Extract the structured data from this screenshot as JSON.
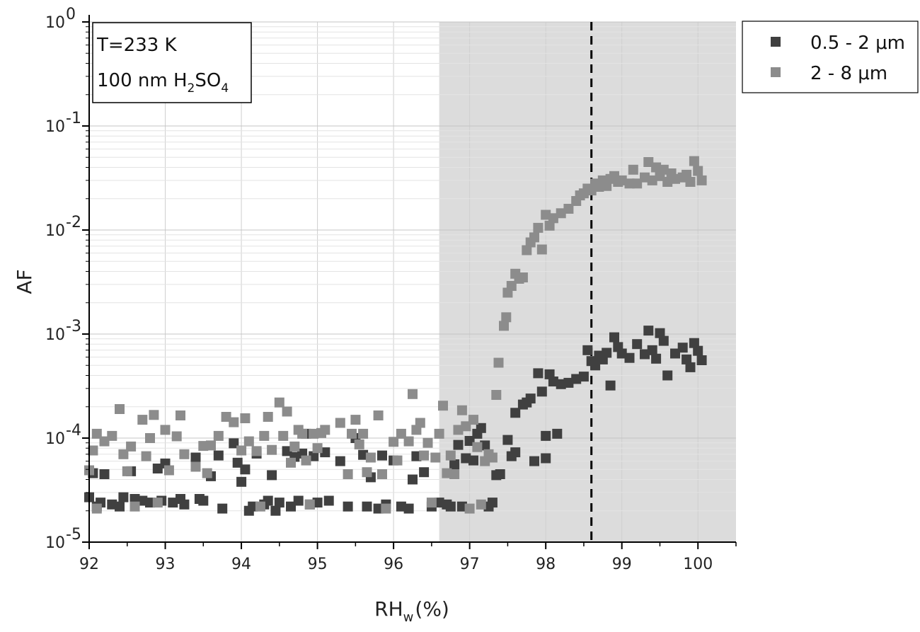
{
  "chart_data": {
    "type": "scatter",
    "xlabel": "RH",
    "xlabel_sub": "w",
    "xlabel_unit": "(%)",
    "ylabel": "AF",
    "xlim": [
      92,
      100.5
    ],
    "ylim": [
      1e-05,
      1
    ],
    "yscale": "log",
    "grid": true,
    "x_ticks": [
      {
        "value": 92,
        "label": "92"
      },
      {
        "value": 93,
        "label": "93"
      },
      {
        "value": 94,
        "label": "94"
      },
      {
        "value": 95,
        "label": "95"
      },
      {
        "value": 96,
        "label": "96"
      },
      {
        "value": 97,
        "label": "97"
      },
      {
        "value": 98,
        "label": "98"
      },
      {
        "value": 99,
        "label": "99"
      },
      {
        "value": 100,
        "label": "100"
      }
    ],
    "y_ticks": [
      {
        "value": 1e-05,
        "base": "10",
        "exp": "-5"
      },
      {
        "value": 0.0001,
        "base": "10",
        "exp": "-4"
      },
      {
        "value": 0.001,
        "base": "10",
        "exp": "-3"
      },
      {
        "value": 0.01,
        "base": "10",
        "exp": "-2"
      },
      {
        "value": 0.1,
        "base": "10",
        "exp": "-1"
      },
      {
        "value": 1,
        "base": "10",
        "exp": "0"
      }
    ],
    "shaded_region": {
      "x_start": 96.6,
      "x_end": 100.5,
      "color": "#dcdcdc"
    },
    "vline": {
      "x": 98.6,
      "style": "dashed",
      "color": "#000000"
    },
    "annotation": {
      "line1": "T=233 K",
      "line2_prefix": "100 nm H",
      "line2_sub1": "2",
      "line2_mid": "SO",
      "line2_sub2": "4"
    },
    "legend_position": "top-right-outside",
    "series": [
      {
        "name": "0.5 - 2 μm",
        "color": "#404040",
        "points": [
          [
            92.0,
            2.7e-05
          ],
          [
            92.05,
            4.6e-05
          ],
          [
            92.1,
            2.2e-05
          ],
          [
            92.15,
            2.4e-05
          ],
          [
            92.2,
            4.5e-05
          ],
          [
            92.3,
            2.3e-05
          ],
          [
            92.4,
            2.2e-05
          ],
          [
            92.45,
            2.7e-05
          ],
          [
            92.55,
            4.8e-05
          ],
          [
            92.6,
            2.6e-05
          ],
          [
            92.7,
            2.5e-05
          ],
          [
            92.8,
            2.4e-05
          ],
          [
            92.9,
            5.1e-05
          ],
          [
            92.95,
            2.5e-05
          ],
          [
            93.0,
            5.7e-05
          ],
          [
            93.1,
            2.4e-05
          ],
          [
            93.2,
            2.6e-05
          ],
          [
            93.25,
            2.3e-05
          ],
          [
            93.4,
            6.5e-05
          ],
          [
            93.45,
            2.6e-05
          ],
          [
            93.5,
            2.5e-05
          ],
          [
            93.6,
            4.3e-05
          ],
          [
            93.7,
            6.8e-05
          ],
          [
            93.75,
            2.1e-05
          ],
          [
            93.9,
            8.9e-05
          ],
          [
            93.95,
            5.8e-05
          ],
          [
            94.0,
            3.8e-05
          ],
          [
            94.05,
            5e-05
          ],
          [
            94.1,
            2e-05
          ],
          [
            94.15,
            2.2e-05
          ],
          [
            94.2,
            7.1e-05
          ],
          [
            94.3,
            2.3e-05
          ],
          [
            94.35,
            2.5e-05
          ],
          [
            94.4,
            4.4e-05
          ],
          [
            94.45,
            2e-05
          ],
          [
            94.5,
            2.4e-05
          ],
          [
            94.6,
            7.5e-05
          ],
          [
            94.65,
            2.2e-05
          ],
          [
            94.7,
            6.6e-05
          ],
          [
            94.75,
            2.5e-05
          ],
          [
            94.8,
            7.1e-05
          ],
          [
            94.85,
            0.00011
          ],
          [
            94.9,
            2.3e-05
          ],
          [
            94.95,
            6.7e-05
          ],
          [
            95.0,
            2.4e-05
          ],
          [
            95.1,
            7.3e-05
          ],
          [
            95.15,
            2.5e-05
          ],
          [
            95.3,
            6e-05
          ],
          [
            95.4,
            2.2e-05
          ],
          [
            95.5,
            0.0001
          ],
          [
            95.6,
            6.9e-05
          ],
          [
            95.65,
            2.2e-05
          ],
          [
            95.7,
            4.2e-05
          ],
          [
            95.8,
            2.1e-05
          ],
          [
            95.85,
            6.8e-05
          ],
          [
            95.9,
            2.3e-05
          ],
          [
            96.0,
            6.1e-05
          ],
          [
            96.1,
            2.2e-05
          ],
          [
            96.2,
            2.1e-05
          ],
          [
            96.25,
            4e-05
          ],
          [
            96.3,
            6.7e-05
          ],
          [
            96.4,
            4.7e-05
          ],
          [
            96.5,
            2.2e-05
          ],
          [
            96.6,
            2.4e-05
          ],
          [
            96.7,
            2.3e-05
          ],
          [
            96.75,
            2.2e-05
          ],
          [
            96.8,
            5.6e-05
          ],
          [
            96.85,
            8.6e-05
          ],
          [
            96.9,
            2.2e-05
          ],
          [
            96.95,
            6.4e-05
          ],
          [
            97.0,
            9.4e-05
          ],
          [
            97.05,
            6.1e-05
          ],
          [
            97.1,
            0.00011
          ],
          [
            97.15,
            0.000125
          ],
          [
            97.2,
            8.5e-05
          ],
          [
            97.25,
            2.2e-05
          ],
          [
            97.3,
            2.4e-05
          ],
          [
            97.35,
            4.4e-05
          ],
          [
            97.4,
            4.5e-05
          ],
          [
            97.5,
            9.6e-05
          ],
          [
            97.55,
            6.7e-05
          ],
          [
            97.6,
            7.3e-05
          ],
          [
            97.6,
            0.000175
          ],
          [
            97.7,
            0.00021
          ],
          [
            97.75,
            0.00022
          ],
          [
            97.8,
            0.00024
          ],
          [
            97.85,
            6e-05
          ],
          [
            97.9,
            0.00042
          ],
          [
            97.95,
            0.00028
          ],
          [
            98.0,
            0.000105
          ],
          [
            98.0,
            6.4e-05
          ],
          [
            98.05,
            0.00041
          ],
          [
            98.1,
            0.00035
          ],
          [
            98.15,
            0.00011
          ],
          [
            98.2,
            0.00033
          ],
          [
            98.3,
            0.00034
          ],
          [
            98.4,
            0.00037
          ],
          [
            98.5,
            0.00039
          ],
          [
            98.55,
            0.0007
          ],
          [
            98.6,
            0.00055
          ],
          [
            98.65,
            0.0005
          ],
          [
            98.7,
            0.00062
          ],
          [
            98.75,
            0.00057
          ],
          [
            98.8,
            0.00066
          ],
          [
            98.85,
            0.00032
          ],
          [
            98.9,
            0.00093
          ],
          [
            98.95,
            0.00075
          ],
          [
            99.0,
            0.00065
          ],
          [
            99.1,
            0.00059
          ],
          [
            99.2,
            0.0008
          ],
          [
            99.3,
            0.00064
          ],
          [
            99.35,
            0.00108
          ],
          [
            99.4,
            0.0007
          ],
          [
            99.45,
            0.00058
          ],
          [
            99.5,
            0.00102
          ],
          [
            99.55,
            0.00086
          ],
          [
            99.6,
            0.0004
          ],
          [
            99.7,
            0.00065
          ],
          [
            99.8,
            0.00074
          ],
          [
            99.85,
            0.00057
          ],
          [
            99.9,
            0.00048
          ],
          [
            99.95,
            0.00082
          ],
          [
            100.0,
            0.00069
          ],
          [
            100.05,
            0.00056
          ]
        ]
      },
      {
        "name": "2 - 8 μm",
        "color": "#8c8c8c",
        "points": [
          [
            92.0,
            4.9e-05
          ],
          [
            92.05,
            7.6e-05
          ],
          [
            92.1,
            0.00011
          ],
          [
            92.1,
            2.1e-05
          ],
          [
            92.2,
            9.3e-05
          ],
          [
            92.3,
            0.000105
          ],
          [
            92.4,
            0.00019
          ],
          [
            92.45,
            7e-05
          ],
          [
            92.5,
            4.8e-05
          ],
          [
            92.55,
            8.3e-05
          ],
          [
            92.6,
            2.2e-05
          ],
          [
            92.7,
            0.00015
          ],
          [
            92.75,
            6.7e-05
          ],
          [
            92.8,
            0.0001
          ],
          [
            92.85,
            0.000167
          ],
          [
            92.9,
            2.4e-05
          ],
          [
            93.0,
            0.00012
          ],
          [
            93.05,
            4.9e-05
          ],
          [
            93.15,
            0.000104
          ],
          [
            93.2,
            0.000165
          ],
          [
            93.25,
            7e-05
          ],
          [
            93.4,
            5.3e-05
          ],
          [
            93.5,
            8.4e-05
          ],
          [
            93.55,
            4.6e-05
          ],
          [
            93.6,
            8.5e-05
          ],
          [
            93.7,
            0.000105
          ],
          [
            93.8,
            0.00016
          ],
          [
            93.9,
            0.000142
          ],
          [
            94.0,
            7.6e-05
          ],
          [
            94.05,
            0.000155
          ],
          [
            94.1,
            9.3e-05
          ],
          [
            94.2,
            7.5e-05
          ],
          [
            94.25,
            2.2e-05
          ],
          [
            94.3,
            0.000105
          ],
          [
            94.35,
            0.00016
          ],
          [
            94.4,
            7.7e-05
          ],
          [
            94.5,
            0.00022
          ],
          [
            94.55,
            0.000105
          ],
          [
            94.6,
            0.00018
          ],
          [
            94.65,
            5.8e-05
          ],
          [
            94.7,
            8.3e-05
          ],
          [
            94.75,
            0.00012
          ],
          [
            94.8,
            0.00011
          ],
          [
            94.85,
            6.1e-05
          ],
          [
            94.9,
            2.3e-05
          ],
          [
            94.95,
            0.00011
          ],
          [
            95.0,
            8e-05
          ],
          [
            95.05,
            0.000112
          ],
          [
            95.1,
            0.00012
          ],
          [
            95.3,
            0.00014
          ],
          [
            95.4,
            4.5e-05
          ],
          [
            95.45,
            0.00011
          ],
          [
            95.5,
            0.00015
          ],
          [
            95.55,
            8.7e-05
          ],
          [
            95.6,
            0.00011
          ],
          [
            95.65,
            4.7e-05
          ],
          [
            95.7,
            6.5e-05
          ],
          [
            95.8,
            0.000165
          ],
          [
            95.85,
            4.5e-05
          ],
          [
            95.9,
            2.1e-05
          ],
          [
            96.0,
            9.2e-05
          ],
          [
            96.05,
            6.1e-05
          ],
          [
            96.1,
            0.00011
          ],
          [
            96.2,
            9.3e-05
          ],
          [
            96.25,
            0.000265
          ],
          [
            96.3,
            0.00012
          ],
          [
            96.35,
            0.00014
          ],
          [
            96.4,
            6.8e-05
          ],
          [
            96.45,
            9e-05
          ],
          [
            96.5,
            2.4e-05
          ],
          [
            96.55,
            6.5e-05
          ],
          [
            96.6,
            0.00011
          ],
          [
            96.65,
            0.000205
          ],
          [
            96.7,
            4.6e-05
          ],
          [
            96.75,
            6.8e-05
          ],
          [
            96.8,
            4.5e-05
          ],
          [
            96.85,
            0.00012
          ],
          [
            96.9,
            0.000185
          ],
          [
            96.95,
            0.00013
          ],
          [
            97.0,
            2.1e-05
          ],
          [
            97.05,
            0.00015
          ],
          [
            97.1,
            8.2e-05
          ],
          [
            97.15,
            2.3e-05
          ],
          [
            97.2,
            6e-05
          ],
          [
            97.25,
            7e-05
          ],
          [
            97.3,
            6.5e-05
          ],
          [
            97.35,
            0.00026
          ],
          [
            97.38,
            0.00053
          ],
          [
            97.45,
            0.0012
          ],
          [
            97.48,
            0.00145
          ],
          [
            97.5,
            0.0025
          ],
          [
            97.55,
            0.0029
          ],
          [
            97.6,
            0.0038
          ],
          [
            97.65,
            0.0034
          ],
          [
            97.7,
            0.0035
          ],
          [
            97.75,
            0.0064
          ],
          [
            97.8,
            0.0076
          ],
          [
            97.85,
            0.0085
          ],
          [
            97.9,
            0.0105
          ],
          [
            97.95,
            0.0065
          ],
          [
            98.0,
            0.014
          ],
          [
            98.05,
            0.011
          ],
          [
            98.1,
            0.013
          ],
          [
            98.2,
            0.0145
          ],
          [
            98.3,
            0.016
          ],
          [
            98.4,
            0.019
          ],
          [
            98.45,
            0.0215
          ],
          [
            98.5,
            0.0225
          ],
          [
            98.55,
            0.025
          ],
          [
            98.6,
            0.024
          ],
          [
            98.65,
            0.028
          ],
          [
            98.7,
            0.026
          ],
          [
            98.75,
            0.03
          ],
          [
            98.8,
            0.0265
          ],
          [
            98.85,
            0.031
          ],
          [
            98.9,
            0.033
          ],
          [
            98.95,
            0.029
          ],
          [
            99.0,
            0.03
          ],
          [
            99.1,
            0.028
          ],
          [
            99.15,
            0.038
          ],
          [
            99.2,
            0.028
          ],
          [
            99.3,
            0.032
          ],
          [
            99.35,
            0.045
          ],
          [
            99.4,
            0.03
          ],
          [
            99.45,
            0.04
          ],
          [
            99.5,
            0.033
          ],
          [
            99.55,
            0.038
          ],
          [
            99.6,
            0.029
          ],
          [
            99.65,
            0.035
          ],
          [
            99.7,
            0.031
          ],
          [
            99.8,
            0.032
          ],
          [
            99.85,
            0.034
          ],
          [
            99.9,
            0.029
          ],
          [
            99.95,
            0.046
          ],
          [
            100.0,
            0.037
          ],
          [
            100.05,
            0.03
          ]
        ]
      }
    ]
  }
}
